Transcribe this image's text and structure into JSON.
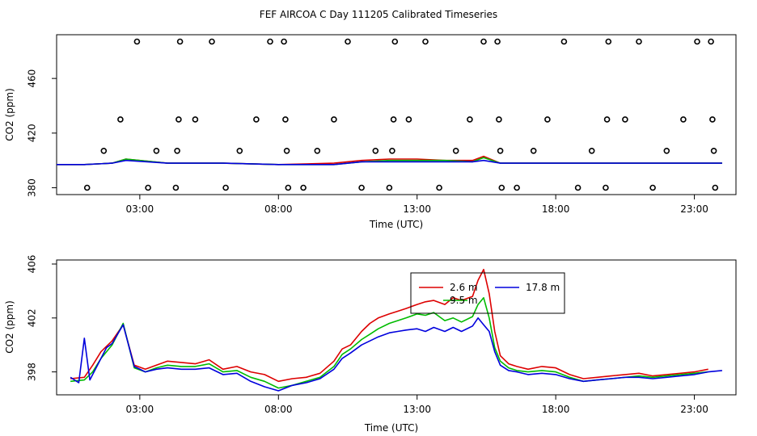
{
  "title": "FEF AIRCOA C  Day 111205  Calibrated Timeseries",
  "chart_data": [
    {
      "type": "scatter",
      "xlabel": "Time (UTC)",
      "ylabel": "CO2 (ppm)",
      "xlim": [
        0,
        24.5
      ],
      "ylim": [
        375,
        492
      ],
      "x_ticks": [
        3,
        8,
        13,
        18,
        23
      ],
      "x_tick_labels": [
        "03:00",
        "08:00",
        "13:00",
        "18:00",
        "23:00"
      ],
      "y_ticks": [
        380,
        420,
        460
      ],
      "y_tick_labels": [
        "380",
        "420",
        "460"
      ],
      "grid": false,
      "points": [
        [
          1.1,
          380
        ],
        [
          1.7,
          407
        ],
        [
          2.3,
          430
        ],
        [
          2.9,
          487
        ],
        [
          3.3,
          380
        ],
        [
          3.6,
          407
        ],
        [
          4.3,
          380
        ],
        [
          4.35,
          407
        ],
        [
          4.4,
          430
        ],
        [
          4.45,
          487
        ],
        [
          5.0,
          430
        ],
        [
          5.6,
          487
        ],
        [
          6.1,
          380
        ],
        [
          6.6,
          407
        ],
        [
          7.2,
          430
        ],
        [
          7.7,
          487
        ],
        [
          8.2,
          487
        ],
        [
          8.25,
          430
        ],
        [
          8.3,
          407
        ],
        [
          8.35,
          380
        ],
        [
          8.9,
          380
        ],
        [
          9.4,
          407
        ],
        [
          10.0,
          430
        ],
        [
          10.5,
          487
        ],
        [
          11.0,
          380
        ],
        [
          11.5,
          407
        ],
        [
          12.0,
          380
        ],
        [
          12.1,
          407
        ],
        [
          12.15,
          430
        ],
        [
          12.2,
          487
        ],
        [
          12.7,
          430
        ],
        [
          13.3,
          487
        ],
        [
          13.8,
          380
        ],
        [
          14.4,
          407
        ],
        [
          14.9,
          430
        ],
        [
          15.4,
          487
        ],
        [
          15.9,
          487
        ],
        [
          15.95,
          430
        ],
        [
          16.0,
          407
        ],
        [
          16.05,
          380
        ],
        [
          16.6,
          380
        ],
        [
          17.2,
          407
        ],
        [
          17.7,
          430
        ],
        [
          18.3,
          487
        ],
        [
          18.8,
          380
        ],
        [
          19.3,
          407
        ],
        [
          19.8,
          380
        ],
        [
          19.85,
          430
        ],
        [
          19.9,
          487
        ],
        [
          20.5,
          430
        ],
        [
          21.0,
          487
        ],
        [
          21.5,
          380
        ],
        [
          22.0,
          407
        ],
        [
          22.6,
          430
        ],
        [
          23.1,
          487
        ],
        [
          23.6,
          487
        ],
        [
          23.65,
          430
        ],
        [
          23.7,
          407
        ],
        [
          23.75,
          380
        ]
      ],
      "series": [
        {
          "color": "#dd0000",
          "x": [
            0,
            1,
            2,
            2.5,
            4,
            6,
            8,
            10,
            11,
            12,
            13,
            14,
            15,
            15.4,
            16,
            18,
            20,
            22,
            24
          ],
          "y": [
            397,
            397,
            398,
            401,
            398,
            398,
            397,
            398,
            400,
            401,
            401,
            400,
            400,
            403,
            398,
            398,
            398,
            398,
            398
          ]
        },
        {
          "color": "#00bb00",
          "x": [
            0,
            1,
            2,
            2.5,
            4,
            6,
            8,
            10,
            11,
            12,
            13,
            14,
            15,
            15.4,
            16,
            18,
            20,
            22,
            24
          ],
          "y": [
            397,
            397,
            398,
            401,
            398,
            398,
            397,
            397,
            399,
            400,
            400,
            400,
            399,
            402,
            398,
            398,
            398,
            398,
            398
          ]
        },
        {
          "color": "#0000dd",
          "x": [
            0,
            1,
            2,
            2.5,
            4,
            6,
            8,
            10,
            11,
            12,
            13,
            14,
            15,
            15.4,
            16,
            18,
            20,
            22,
            24
          ],
          "y": [
            397,
            397,
            398,
            400,
            398,
            398,
            397,
            397,
            399,
            399,
            399,
            399,
            399,
            400,
            398,
            398,
            398,
            398,
            398
          ]
        }
      ]
    },
    {
      "type": "line",
      "xlabel": "Time (UTC)",
      "ylabel": "CO2 (ppm)",
      "xlim": [
        0,
        24.5
      ],
      "ylim": [
        396.3,
        406.3
      ],
      "x_ticks": [
        3,
        8,
        13,
        18,
        23
      ],
      "x_tick_labels": [
        "03:00",
        "08:00",
        "13:00",
        "18:00",
        "23:00"
      ],
      "y_ticks": [
        398,
        402,
        406
      ],
      "y_tick_labels": [
        "398",
        "402",
        "406"
      ],
      "grid": false,
      "legend": {
        "position": "top-center",
        "entries": [
          {
            "label": "2.6 m",
            "color": "#dd0000"
          },
          {
            "label": "17.8 m",
            "color": "#0000dd"
          },
          {
            "label": "9.5 m",
            "color": "#00bb00"
          }
        ]
      },
      "series": [
        {
          "name": "2.6 m",
          "color": "#dd0000",
          "x": [
            0.5,
            1.0,
            1.3,
            1.6,
            2.0,
            2.4,
            2.8,
            3.2,
            3.6,
            4.0,
            4.5,
            5.0,
            5.5,
            6.0,
            6.5,
            7.0,
            7.5,
            8.0,
            8.5,
            9.0,
            9.5,
            10.0,
            10.3,
            10.6,
            11.0,
            11.3,
            11.6,
            12.0,
            12.3,
            12.6,
            13.0,
            13.3,
            13.6,
            14.0,
            14.3,
            14.6,
            15.0,
            15.2,
            15.4,
            15.6,
            15.8,
            16.0,
            16.3,
            16.6,
            17.0,
            17.5,
            18.0,
            18.5,
            19.0,
            19.5,
            20.0,
            20.5,
            21.0,
            21.5,
            22.0,
            22.5,
            23.0,
            23.5
          ],
          "y": [
            397.5,
            397.6,
            398.5,
            399.5,
            400.3,
            401.5,
            398.5,
            398.2,
            398.5,
            398.8,
            398.7,
            398.6,
            398.9,
            398.2,
            398.4,
            398.0,
            397.8,
            397.3,
            397.5,
            397.6,
            397.9,
            398.8,
            399.7,
            400.0,
            401.0,
            401.6,
            402.0,
            402.3,
            402.5,
            402.7,
            403.0,
            403.2,
            403.3,
            403.0,
            403.5,
            403.3,
            403.6,
            404.8,
            405.6,
            403.8,
            401.0,
            399.2,
            398.6,
            398.4,
            398.2,
            398.4,
            398.3,
            397.8,
            397.5,
            397.6,
            397.7,
            397.8,
            397.9,
            397.7,
            397.8,
            397.9,
            398.0,
            398.2
          ]
        },
        {
          "name": "9.5 m",
          "color": "#00bb00",
          "x": [
            0.5,
            1.0,
            1.3,
            1.6,
            2.0,
            2.4,
            2.8,
            3.2,
            3.6,
            4.0,
            4.5,
            5.0,
            5.5,
            6.0,
            6.5,
            7.0,
            7.5,
            8.0,
            8.5,
            9.0,
            9.5,
            10.0,
            10.3,
            10.6,
            11.0,
            11.3,
            11.6,
            12.0,
            12.3,
            12.6,
            13.0,
            13.3,
            13.6,
            14.0,
            14.3,
            14.6,
            15.0,
            15.2,
            15.4,
            15.6,
            15.8,
            16.0,
            16.3,
            16.6,
            17.0,
            17.5,
            18.0,
            18.5,
            19.0,
            19.5,
            20.0,
            20.5,
            21.0,
            21.5,
            22.0,
            22.5,
            23.0,
            23.5
          ],
          "y": [
            397.3,
            397.4,
            398.0,
            399.0,
            400.0,
            401.6,
            398.3,
            398.0,
            398.3,
            398.5,
            398.4,
            398.4,
            398.6,
            398.0,
            398.1,
            397.6,
            397.3,
            396.8,
            397.0,
            397.3,
            397.6,
            398.4,
            399.3,
            399.7,
            400.4,
            400.8,
            401.2,
            401.6,
            401.8,
            402.0,
            402.3,
            402.2,
            402.4,
            401.8,
            402.0,
            401.7,
            402.1,
            403.0,
            403.5,
            402.0,
            399.8,
            398.8,
            398.3,
            398.1,
            398.0,
            398.1,
            398.0,
            397.6,
            397.3,
            397.4,
            397.5,
            397.6,
            397.7,
            397.6,
            397.7,
            397.8,
            397.9,
            398.0
          ]
        },
        {
          "name": "17.8 m",
          "color": "#0000dd",
          "x": [
            0.5,
            0.8,
            1.0,
            1.2,
            1.5,
            1.8,
            2.0,
            2.4,
            2.8,
            3.2,
            3.6,
            4.0,
            4.5,
            5.0,
            5.5,
            6.0,
            6.5,
            7.0,
            7.5,
            8.0,
            8.5,
            9.0,
            9.5,
            10.0,
            10.3,
            10.6,
            11.0,
            11.3,
            11.6,
            12.0,
            12.3,
            12.6,
            13.0,
            13.3,
            13.6,
            14.0,
            14.3,
            14.6,
            15.0,
            15.2,
            15.4,
            15.6,
            15.8,
            16.0,
            16.3,
            16.6,
            17.0,
            17.5,
            18.0,
            18.5,
            19.0,
            19.5,
            20.0,
            20.5,
            21.0,
            21.5,
            22.0,
            22.5,
            23.0,
            23.5,
            24.0
          ],
          "y": [
            397.6,
            397.2,
            400.5,
            397.4,
            398.6,
            399.8,
            400.1,
            401.5,
            398.4,
            398.0,
            398.2,
            398.3,
            398.2,
            398.2,
            398.3,
            397.8,
            397.9,
            397.3,
            396.9,
            396.6,
            397.0,
            397.2,
            397.5,
            398.2,
            399.0,
            399.4,
            400.0,
            400.3,
            400.6,
            400.9,
            401.0,
            401.1,
            401.2,
            401.0,
            401.3,
            401.0,
            401.3,
            401.0,
            401.4,
            402.0,
            401.5,
            401.0,
            399.5,
            398.5,
            398.1,
            398.0,
            397.8,
            397.9,
            397.8,
            397.5,
            397.3,
            397.4,
            397.5,
            397.6,
            397.6,
            397.5,
            397.6,
            397.7,
            397.8,
            398.0,
            398.1
          ]
        }
      ]
    }
  ]
}
